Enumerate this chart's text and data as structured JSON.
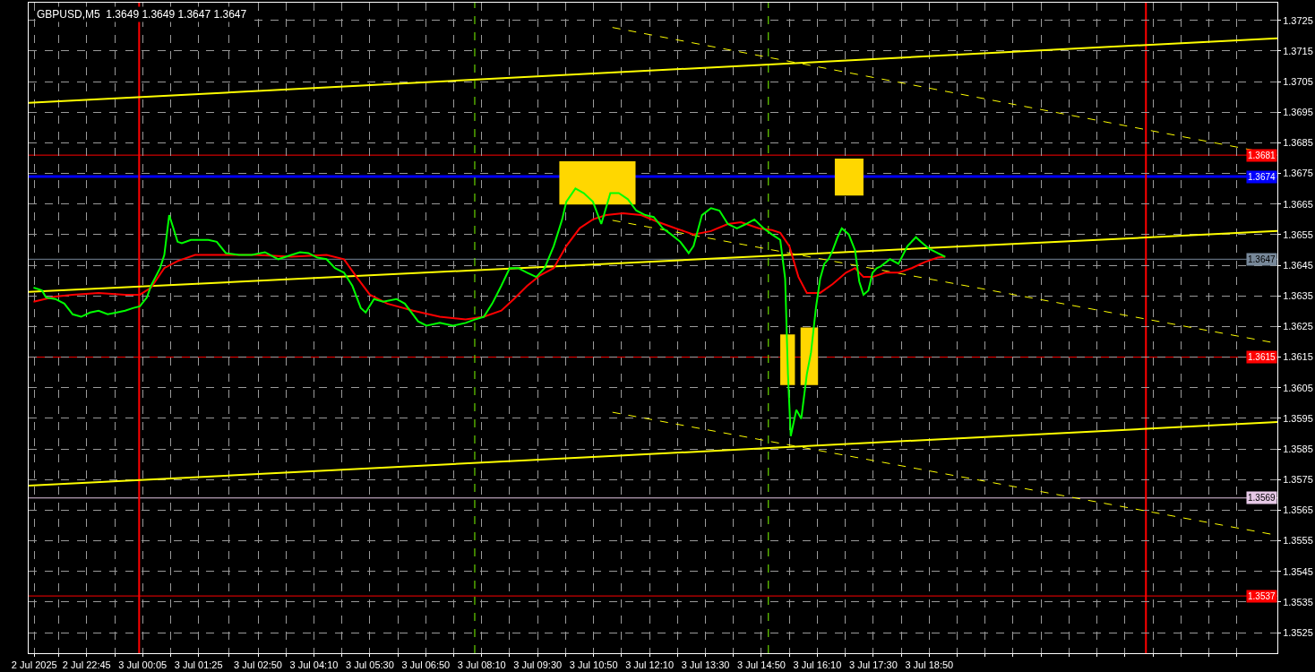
{
  "chart_data": {
    "type": "line",
    "title": "GBPUSD,M5  1.3649 1.3649 1.3647 1.3647",
    "xlim": [
      "2025-07-02T21:22",
      "2025-07-04T03:08"
    ],
    "ylim": [
      1.35183,
      1.37308
    ],
    "xticks": [
      {
        "value": "2025-07-02T21:30",
        "label": "2 Jul 2025"
      },
      {
        "value": "2025-07-02T22:05",
        "label": null
      },
      {
        "value": "2025-07-02T22:45",
        "label": "2 Jul 22:45"
      },
      {
        "value": "2025-07-02T23:25",
        "label": null
      },
      {
        "value": "2025-07-03T00:05",
        "label": "3 Jul 00:05"
      },
      {
        "value": "2025-07-03T00:45",
        "label": null
      },
      {
        "value": "2025-07-03T01:25",
        "label": "3 Jul 01:25"
      },
      {
        "value": "2025-07-03T02:08",
        "label": null
      },
      {
        "value": "2025-07-03T02:50",
        "label": "3 Jul 02:50"
      },
      {
        "value": "2025-07-03T03:30",
        "label": null
      },
      {
        "value": "2025-07-03T04:10",
        "label": "3 Jul 04:10"
      },
      {
        "value": "2025-07-03T04:50",
        "label": null
      },
      {
        "value": "2025-07-03T05:30",
        "label": "3 Jul 05:30"
      },
      {
        "value": "2025-07-03T06:10",
        "label": null
      },
      {
        "value": "2025-07-03T06:50",
        "label": "3 Jul 06:50"
      },
      {
        "value": "2025-07-03T07:30",
        "label": null
      },
      {
        "value": "2025-07-03T08:10",
        "label": "3 Jul 08:10"
      },
      {
        "value": "2025-07-03T08:50",
        "label": null
      },
      {
        "value": "2025-07-03T09:30",
        "label": "3 Jul 09:30"
      },
      {
        "value": "2025-07-03T10:10",
        "label": null
      },
      {
        "value": "2025-07-03T10:50",
        "label": "3 Jul 10:50"
      },
      {
        "value": "2025-07-03T11:30",
        "label": null
      },
      {
        "value": "2025-07-03T12:10",
        "label": "3 Jul 12:10"
      },
      {
        "value": "2025-07-03T12:50",
        "label": null
      },
      {
        "value": "2025-07-03T13:30",
        "label": "3 Jul 13:30"
      },
      {
        "value": "2025-07-03T14:10",
        "label": null
      },
      {
        "value": "2025-07-03T14:50",
        "label": "3 Jul 14:50"
      },
      {
        "value": "2025-07-03T15:30",
        "label": null
      },
      {
        "value": "2025-07-03T16:10",
        "label": "3 Jul 16:10"
      },
      {
        "value": "2025-07-03T16:50",
        "label": null
      },
      {
        "value": "2025-07-03T17:30",
        "label": "3 Jul 17:30"
      },
      {
        "value": "2025-07-03T18:10",
        "label": null
      },
      {
        "value": "2025-07-03T18:50",
        "label": "3 Jul 18:50"
      },
      {
        "value": "2025-07-03T19:30",
        "label": null
      },
      {
        "value": "2025-07-03T20:10",
        "label": null
      },
      {
        "value": "2025-07-03T20:50",
        "label": null
      },
      {
        "value": "2025-07-03T21:30",
        "label": null
      },
      {
        "value": "2025-07-03T22:10",
        "label": null
      },
      {
        "value": "2025-07-03T22:50",
        "label": null
      },
      {
        "value": "2025-07-03T23:30",
        "label": null
      },
      {
        "value": "2025-07-04T00:10",
        "label": null
      },
      {
        "value": "2025-07-04T00:50",
        "label": null
      },
      {
        "value": "2025-07-04T01:30",
        "label": null
      },
      {
        "value": "2025-07-04T02:10",
        "label": null
      }
    ],
    "yticks": [
      1.3525,
      1.3535,
      1.3545,
      1.3555,
      1.3565,
      1.3575,
      1.3585,
      1.3595,
      1.3605,
      1.3615,
      1.3625,
      1.3635,
      1.3645,
      1.3655,
      1.3665,
      1.3675,
      1.3685,
      1.3695,
      1.3705,
      1.3715,
      1.3725
    ],
    "grid": true,
    "marker": "none",
    "series": [
      {
        "color": "#00ff00",
        "line_style": "solid",
        "x": [
          "2025-07-02T21:29",
          "2025-07-02T21:41",
          "2025-07-02T21:47",
          "2025-07-02T22:00",
          "2025-07-02T22:13",
          "2025-07-02T22:25",
          "2025-07-02T22:37",
          "2025-07-02T22:50",
          "2025-07-02T23:02",
          "2025-07-02T23:15",
          "2025-07-02T23:28",
          "2025-07-02T23:40",
          "2025-07-02T23:52",
          "2025-07-03T00:01",
          "2025-07-03T00:11",
          "2025-07-03T00:17",
          "2025-07-03T00:30",
          "2025-07-03T00:36",
          "2025-07-03T00:43",
          "2025-07-03T00:49",
          "2025-07-03T00:55",
          "2025-07-03T01:01",
          "2025-07-03T01:14",
          "2025-07-03T01:26",
          "2025-07-03T01:39",
          "2025-07-03T01:51",
          "2025-07-03T02:04",
          "2025-07-03T02:23",
          "2025-07-03T02:41",
          "2025-07-03T03:00",
          "2025-07-03T03:19",
          "2025-07-03T03:38",
          "2025-07-03T03:50",
          "2025-07-03T04:02",
          "2025-07-03T04:15",
          "2025-07-03T04:28",
          "2025-07-03T04:40",
          "2025-07-03T04:53",
          "2025-07-03T05:05",
          "2025-07-03T05:17",
          "2025-07-03T05:24",
          "2025-07-03T05:36",
          "2025-07-03T05:49",
          "2025-07-03T06:08",
          "2025-07-03T06:20",
          "2025-07-03T06:39",
          "2025-07-03T06:51",
          "2025-07-03T07:10",
          "2025-07-03T07:29",
          "2025-07-03T07:47",
          "2025-07-03T08:00",
          "2025-07-03T08:13",
          "2025-07-03T08:25",
          "2025-07-03T08:38",
          "2025-07-03T08:50",
          "2025-07-03T09:02",
          "2025-07-03T09:15",
          "2025-07-03T09:28",
          "2025-07-03T09:40",
          "2025-07-03T09:53",
          "2025-07-03T09:59",
          "2025-07-03T10:05",
          "2025-07-03T10:11",
          "2025-07-03T10:24",
          "2025-07-03T10:36",
          "2025-07-03T10:49",
          "2025-07-03T11:01",
          "2025-07-03T11:14",
          "2025-07-03T11:26",
          "2025-07-03T11:39",
          "2025-07-03T11:51",
          "2025-07-03T12:04",
          "2025-07-03T12:16",
          "2025-07-03T12:29",
          "2025-07-03T12:41",
          "2025-07-03T12:54",
          "2025-07-03T13:06",
          "2025-07-03T13:13",
          "2025-07-03T13:25",
          "2025-07-03T13:38",
          "2025-07-03T13:50",
          "2025-07-03T14:02",
          "2025-07-03T14:15",
          "2025-07-03T14:28",
          "2025-07-03T14:40",
          "2025-07-03T14:53",
          "2025-07-03T15:05",
          "2025-07-03T15:17",
          "2025-07-03T15:24",
          "2025-07-03T15:28",
          "2025-07-03T15:32",
          "2025-07-03T15:40",
          "2025-07-03T15:47",
          "2025-07-03T15:55",
          "2025-07-03T16:01",
          "2025-07-03T16:08",
          "2025-07-03T16:14",
          "2025-07-03T16:20",
          "2025-07-03T16:26",
          "2025-07-03T16:32",
          "2025-07-03T16:39",
          "2025-07-03T16:45",
          "2025-07-03T16:55",
          "2025-07-03T17:04",
          "2025-07-03T17:10",
          "2025-07-03T17:16",
          "2025-07-03T17:23",
          "2025-07-03T17:29",
          "2025-07-03T17:35",
          "2025-07-03T17:41",
          "2025-07-03T17:54",
          "2025-07-03T18:06",
          "2025-07-03T18:19",
          "2025-07-03T18:31",
          "2025-07-03T18:38",
          "2025-07-03T18:50",
          "2025-07-03T19:02",
          "2025-07-03T19:13"
        ],
        "values": [
          1.36377,
          1.36368,
          1.36345,
          1.3634,
          1.36325,
          1.3629,
          1.36282,
          1.36296,
          1.36302,
          1.3629,
          1.36296,
          1.36302,
          1.36311,
          1.36316,
          1.36345,
          1.36383,
          1.36441,
          1.36484,
          1.36614,
          1.36571,
          1.36527,
          1.36522,
          1.36533,
          1.36533,
          1.36533,
          1.36527,
          1.3649,
          1.36484,
          1.36484,
          1.36493,
          1.3647,
          1.36484,
          1.36493,
          1.3649,
          1.36475,
          1.3647,
          1.36441,
          1.36426,
          1.36383,
          1.36311,
          1.36296,
          1.3634,
          1.36331,
          1.3634,
          1.36325,
          1.36267,
          1.36253,
          1.36262,
          1.36253,
          1.36262,
          1.36273,
          1.36282,
          1.36325,
          1.36383,
          1.36441,
          1.36441,
          1.36426,
          1.36412,
          1.36441,
          1.36513,
          1.36556,
          1.366,
          1.36658,
          1.36701,
          1.36686,
          1.36658,
          1.36585,
          1.36686,
          1.36686,
          1.36666,
          1.36629,
          1.36614,
          1.36608,
          1.36571,
          1.36551,
          1.36527,
          1.3649,
          1.36513,
          1.36614,
          1.36637,
          1.36629,
          1.36585,
          1.36571,
          1.36585,
          1.366,
          1.36571,
          1.36551,
          1.36533,
          1.36406,
          1.36094,
          1.35892,
          1.35978,
          1.35949,
          1.36094,
          1.36166,
          1.36311,
          1.36406,
          1.36455,
          1.3647,
          1.36499,
          1.36542,
          1.36571,
          1.36551,
          1.36499,
          1.36397,
          1.36354,
          1.36368,
          1.36426,
          1.36441,
          1.36447,
          1.3647,
          1.36455,
          1.36513,
          1.36542,
          1.36527,
          1.36504,
          1.3649,
          1.36478
        ]
      },
      {
        "color": "#ff0000",
        "line_style": "solid",
        "x": [
          "2025-07-02T21:29",
          "2025-07-02T22:00",
          "2025-07-02T22:25",
          "2025-07-02T23:02",
          "2025-07-02T23:40",
          "2025-07-03T00:01",
          "2025-07-03T00:17",
          "2025-07-03T00:36",
          "2025-07-03T00:55",
          "2025-07-03T01:20",
          "2025-07-03T01:45",
          "2025-07-03T02:47",
          "2025-07-03T03:38",
          "2025-07-03T04:28",
          "2025-07-03T04:53",
          "2025-07-03T05:11",
          "2025-07-03T05:30",
          "2025-07-03T05:55",
          "2025-07-03T06:32",
          "2025-07-03T07:10",
          "2025-07-03T07:47",
          "2025-07-03T08:13",
          "2025-07-03T08:38",
          "2025-07-03T08:56",
          "2025-07-03T09:15",
          "2025-07-03T09:34",
          "2025-07-03T09:53",
          "2025-07-03T10:11",
          "2025-07-03T10:30",
          "2025-07-03T10:49",
          "2025-07-03T11:08",
          "2025-07-03T11:32",
          "2025-07-03T11:58",
          "2025-07-03T12:23",
          "2025-07-03T12:47",
          "2025-07-03T13:13",
          "2025-07-03T13:38",
          "2025-07-03T14:02",
          "2025-07-03T14:21",
          "2025-07-03T14:46",
          "2025-07-03T15:05",
          "2025-07-03T15:17",
          "2025-07-03T15:30",
          "2025-07-03T15:43",
          "2025-07-03T15:55",
          "2025-07-03T16:14",
          "2025-07-03T16:32",
          "2025-07-03T16:51",
          "2025-07-03T17:04",
          "2025-07-03T17:16",
          "2025-07-03T17:29",
          "2025-07-03T17:47",
          "2025-07-03T18:06",
          "2025-07-03T18:25",
          "2025-07-03T18:44",
          "2025-07-03T19:02",
          "2025-07-03T19:13"
        ],
        "values": [
          1.36331,
          1.36348,
          1.36354,
          1.3636,
          1.36354,
          1.36354,
          1.36377,
          1.36441,
          1.36464,
          1.36484,
          1.36484,
          1.36484,
          1.36478,
          1.36484,
          1.3647,
          1.36412,
          1.36354,
          1.36325,
          1.36302,
          1.36282,
          1.36273,
          1.36282,
          1.36302,
          1.3634,
          1.36383,
          1.36418,
          1.36441,
          1.36513,
          1.36571,
          1.366,
          1.36614,
          1.3662,
          1.36614,
          1.36591,
          1.36571,
          1.36551,
          1.36562,
          1.36585,
          1.36591,
          1.36571,
          1.36565,
          1.36556,
          1.36513,
          1.36412,
          1.3636,
          1.3636,
          1.36389,
          1.36426,
          1.36441,
          1.36412,
          1.36412,
          1.36426,
          1.36426,
          1.36441,
          1.36461,
          1.36475,
          1.36478
        ]
      },
      {
        "color": "#ffff00",
        "line_style": "solid",
        "x": [
          "2025-07-02T21:22",
          "2025-07-04T03:08"
        ],
        "values": [
          1.36981,
          1.37192
        ]
      },
      {
        "color": "#ffff00",
        "line_style": "solid",
        "x": [
          "2025-07-02T21:22",
          "2025-07-04T03:08"
        ],
        "values": [
          1.36363,
          1.36562
        ]
      },
      {
        "color": "#ffff00",
        "line_style": "solid",
        "x": [
          "2025-07-02T21:22",
          "2025-07-04T03:08"
        ],
        "values": [
          1.3573,
          1.35938
        ]
      },
      {
        "color": "#ffff00",
        "line_style": "dashed",
        "x": [
          "2025-07-03T11:17",
          "2025-07-04T03:08"
        ],
        "values": [
          1.37227,
          1.36811
        ]
      },
      {
        "color": "#ffff00",
        "line_style": "dashed",
        "x": [
          "2025-07-03T11:17",
          "2025-07-04T03:08"
        ],
        "values": [
          1.36597,
          1.36195
        ]
      },
      {
        "color": "#ffff00",
        "line_style": "dashed",
        "x": [
          "2025-07-03T11:17",
          "2025-07-04T03:08"
        ],
        "values": [
          1.3597,
          1.35568
        ]
      },
      {
        "color": "#ffd700",
        "x": [
          "2025-07-03T10:01",
          "2025-07-03T11:50"
        ],
        "values": [
          null,
          null
        ],
        "lower": [
          1.36649,
          1.36649
        ],
        "upper": [
          1.3679,
          1.3679
        ]
      },
      {
        "color": "#ffd700",
        "x": [
          "2025-07-03T16:35",
          "2025-07-03T17:16"
        ],
        "values": [
          null,
          null
        ],
        "lower": [
          1.36678,
          1.36678
        ],
        "upper": [
          1.36799,
          1.36799
        ]
      },
      {
        "color": "#ffd700",
        "x": [
          "2025-07-03T15:17",
          "2025-07-03T15:38"
        ],
        "values": [
          null,
          null
        ],
        "lower": [
          1.36059,
          1.36059
        ],
        "upper": [
          1.36224,
          1.36224
        ]
      },
      {
        "color": "#ffd700",
        "x": [
          "2025-07-03T15:46",
          "2025-07-03T16:11"
        ],
        "values": [
          null,
          null
        ],
        "lower": [
          1.36059,
          1.36059
        ],
        "upper": [
          1.36247,
          1.36247
        ]
      }
    ],
    "ref_lines": [
      {
        "axis": "y",
        "value": 1.3681,
        "label": "1.3681",
        "color": "#ff0000"
      },
      {
        "axis": "y",
        "value": 1.3674,
        "label": "1.3674",
        "color": "#0000ff"
      },
      {
        "axis": "y",
        "value": 1.3647,
        "label": "1.3647",
        "color": "#778899"
      },
      {
        "axis": "y",
        "value": 1.3615,
        "label": "1.3615",
        "color": "#ff0000"
      },
      {
        "axis": "y",
        "value": 1.3569,
        "label": "1.3569",
        "color": "#e6c8e6"
      },
      {
        "axis": "y",
        "value": 1.3537,
        "label": "1.3537",
        "color": "#ff0000"
      },
      {
        "axis": "x",
        "value": "2025-07-03T00:00",
        "color": "#ff0000"
      },
      {
        "axis": "x",
        "value": "2025-07-04T00:00",
        "color": "#ff0000"
      },
      {
        "axis": "x",
        "value": "2025-07-03T08:00",
        "color": "#7cfc00",
        "line_style": "dashed"
      },
      {
        "axis": "x",
        "value": "2025-07-03T15:00",
        "color": "#7cfc00",
        "line_style": "dashed"
      }
    ]
  }
}
